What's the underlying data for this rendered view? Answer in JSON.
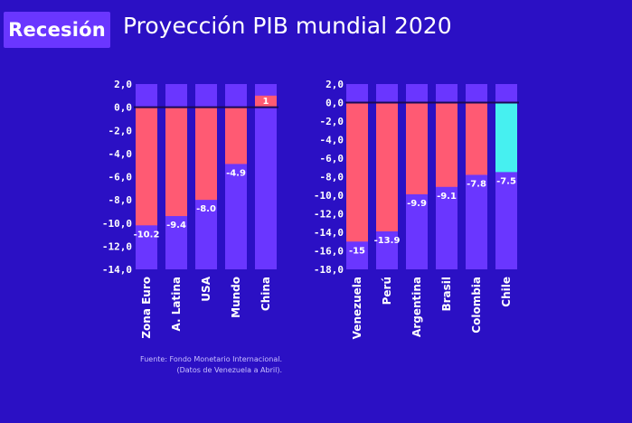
{
  "header": {
    "tag_label": "Recesión",
    "title": "Proyección PIB mundial 2020"
  },
  "source": {
    "line1": "Fuente: Fondo Monetario Internacional.",
    "line2": "(Datos de Venezuela a Abril)."
  },
  "colors": {
    "background": "#2b10c4",
    "column": "#6a36ff",
    "bar": "#ff5a73",
    "highlight": "#46f0f0",
    "tag": "#6a36ff"
  },
  "chart_data": [
    {
      "type": "bar",
      "categories": [
        "Zona Euro",
        "A. Latina",
        "USA",
        "Mundo",
        "China"
      ],
      "values": [
        -10.2,
        -9.4,
        -8.0,
        -4.9,
        1.0
      ],
      "value_labels": [
        "-10.2",
        "-9.4",
        "-8.0",
        "-4.9",
        "1"
      ],
      "yticks": [
        "2,0",
        "0,0",
        "-2,0",
        "-4,0",
        "-6,0",
        "-8,0",
        "-10,0",
        "-12,0",
        "-14,0"
      ],
      "ylim": [
        -14,
        2
      ],
      "grid": false
    },
    {
      "type": "bar",
      "categories": [
        "Venezuela",
        "Perú",
        "Argentina",
        "Brasil",
        "Colombia",
        "Chile"
      ],
      "values": [
        -15,
        -13.9,
        -9.9,
        -9.1,
        -7.8,
        -7.5
      ],
      "value_labels": [
        "-15",
        "-13.9",
        "-9.9",
        "-9.1",
        "-7.8",
        "-7.5"
      ],
      "highlight": "Chile",
      "yticks": [
        "2,0",
        "0,0",
        "-2,0",
        "-4,0",
        "-6,0",
        "-8,0",
        "-10,0",
        "-12,0",
        "-14,0",
        "-16,0",
        "-18,0"
      ],
      "ylim": [
        -18,
        2
      ],
      "grid": false
    }
  ]
}
